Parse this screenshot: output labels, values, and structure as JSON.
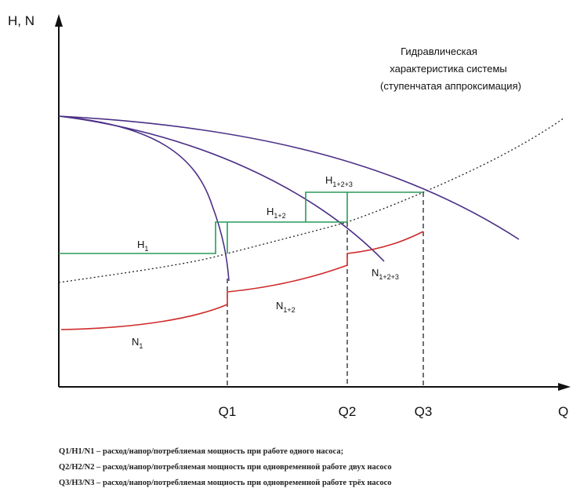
{
  "axes": {
    "y_label": "H, N",
    "x_label": "Q",
    "q_labels": [
      "Q1",
      "Q2",
      "Q3"
    ]
  },
  "annotation": [
    "Гидравлическая",
    "характеристика системы",
    "(ступенчатая аппроксимация)"
  ],
  "curve_labels": [
    {
      "text": "H",
      "sub": "1"
    },
    {
      "text": "H",
      "sub": "1+2"
    },
    {
      "text": "H",
      "sub": "1+2+3"
    },
    {
      "text": "N",
      "sub": "1"
    },
    {
      "text": "N",
      "sub": "1+2"
    },
    {
      "text": "N",
      "sub": "1+2+3"
    }
  ],
  "legend": [
    "Q1/H1/N1 – расход/напор/потребляемая мощность при работе одного насоса;",
    "Q2/H2/N2 – расход/напор/потребляемая мощность при одновременной работе двух насосо",
    "Q3/H3/N3 – расход/напор/потребляемая мощность при одновременной работе трёх насосо"
  ]
}
